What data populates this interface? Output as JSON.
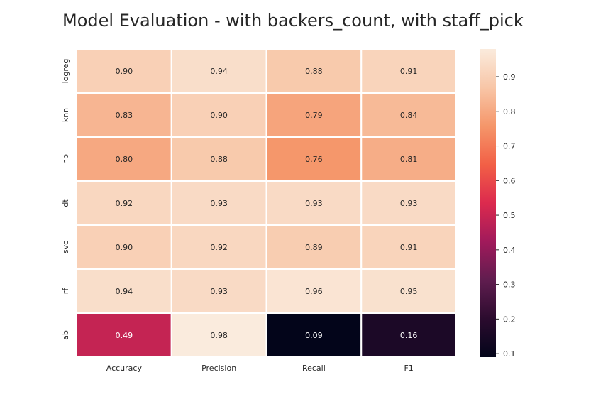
{
  "chart_data": {
    "type": "heatmap",
    "title": "Model Evaluation - with backers_count, with staff_pick",
    "columns": [
      "Accuracy",
      "Precision",
      "Recall",
      "F1"
    ],
    "rows": [
      "logreg",
      "knn",
      "nb",
      "dt",
      "svc",
      "rf",
      "ab"
    ],
    "values": [
      [
        0.9,
        0.94,
        0.88,
        0.91
      ],
      [
        0.83,
        0.9,
        0.79,
        0.84
      ],
      [
        0.8,
        0.88,
        0.76,
        0.81
      ],
      [
        0.92,
        0.93,
        0.93,
        0.93
      ],
      [
        0.9,
        0.92,
        0.89,
        0.91
      ],
      [
        0.94,
        0.93,
        0.96,
        0.95
      ],
      [
        0.49,
        0.98,
        0.09,
        0.16
      ]
    ],
    "labels": [
      [
        "0.90",
        "0.94",
        "0.88",
        "0.91"
      ],
      [
        "0.83",
        "0.90",
        "0.79",
        "0.84"
      ],
      [
        "0.80",
        "0.88",
        "0.76",
        "0.81"
      ],
      [
        "0.92",
        "0.93",
        "0.93",
        "0.93"
      ],
      [
        "0.90",
        "0.92",
        "0.89",
        "0.91"
      ],
      [
        "0.94",
        "0.93",
        "0.96",
        "0.95"
      ],
      [
        "0.49",
        "0.98",
        "0.09",
        "0.16"
      ]
    ],
    "colorbar": {
      "min": 0.09,
      "max": 0.98,
      "ticks": [
        0.1,
        0.2,
        0.3,
        0.4,
        0.5,
        0.6,
        0.7,
        0.8,
        0.9
      ],
      "tick_labels": [
        "0.1",
        "0.2",
        "0.3",
        "0.4",
        "0.5",
        "0.6",
        "0.7",
        "0.8",
        "0.9"
      ]
    },
    "colormap": "rocket",
    "colormap_stops": [
      "#03051a",
      "#2b0b2e",
      "#601d4f",
      "#a11a5b",
      "#dc2a4e",
      "#f26046",
      "#f5966a",
      "#f8c6a7",
      "#faebdd"
    ],
    "grid_line_color": "#ffffff"
  }
}
